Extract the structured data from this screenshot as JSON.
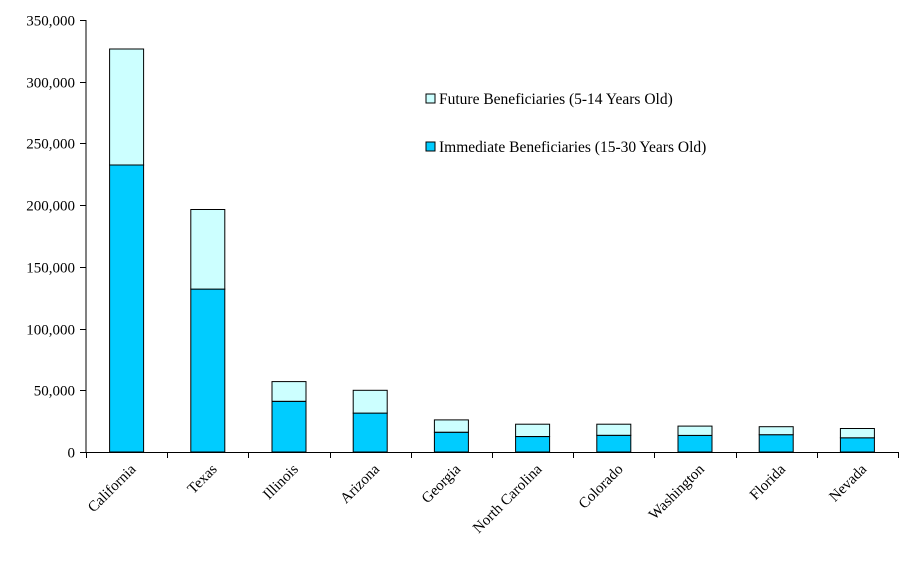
{
  "chart_data": {
    "type": "bar",
    "stacked": true,
    "title": "",
    "xlabel": "",
    "ylabel": "",
    "categories": [
      "California",
      "Texas",
      "Illinois",
      "Arizona",
      "Georgia",
      "North Carolina",
      "Colorado",
      "Washington",
      "Florida",
      "Nevada"
    ],
    "series": [
      {
        "name": "Immediate Beneficiaries (15-30 Years Old)",
        "color": "#00ccff",
        "values": [
          232500,
          132000,
          41000,
          31500,
          16000,
          12500,
          13500,
          13500,
          14000,
          11500
        ]
      },
      {
        "name": "Future Beneficiaries (5-14 Years Old)",
        "color": "#ccffff",
        "values": [
          94000,
          64500,
          16000,
          18500,
          10000,
          10000,
          9000,
          7500,
          6500,
          7500
        ]
      }
    ],
    "ylim": [
      0,
      350000
    ],
    "yticks": [
      0,
      50000,
      100000,
      150000,
      200000,
      250000,
      300000,
      350000
    ],
    "ytick_labels": [
      "0",
      "50,000",
      "100,000",
      "150,000",
      "200,000",
      "250,000",
      "300,000",
      "350,000"
    ],
    "grid": false,
    "legend_position": "top-right",
    "legend_order": [
      1,
      0
    ]
  }
}
